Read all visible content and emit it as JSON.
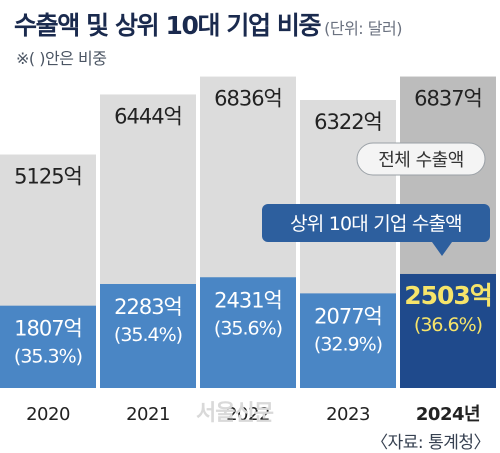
{
  "header": {
    "title": "수출액 및 상위 10대 기업 비중",
    "unit": "(단위: 달러)",
    "note": "※( )안은 비중"
  },
  "source": "〈자료: 통계청〉",
  "watermark": "서울신문",
  "chart_data": {
    "type": "bar",
    "categories": [
      "2020",
      "2021",
      "2022",
      "2023",
      "2024년"
    ],
    "series": [
      {
        "name": "전체 수출액",
        "values": [
          5125,
          6444,
          6836,
          6322,
          6837
        ],
        "labels": [
          "5125억",
          "6444억",
          "6836억",
          "6322억",
          "6837억"
        ]
      },
      {
        "name": "상위 10대 기업 수출액",
        "values": [
          1807,
          2283,
          2431,
          2077,
          2503
        ],
        "labels": [
          "1807억",
          "2283억",
          "2431억",
          "2077억",
          "2503억"
        ],
        "shares": [
          "(35.3%)",
          "(35.4%)",
          "(35.6%)",
          "(32.9%)",
          "(36.6%)"
        ]
      }
    ],
    "highlight_index": 4,
    "ylabel": "",
    "xlabel": "",
    "colors": {
      "total": "#dcdcdc",
      "total_highlight": "#bcbcbc",
      "top10": "#4a86c5",
      "top10_highlight": "#1f4a8c",
      "highlight_value": "#f6e46a",
      "callout": "#2d5f9e"
    }
  }
}
